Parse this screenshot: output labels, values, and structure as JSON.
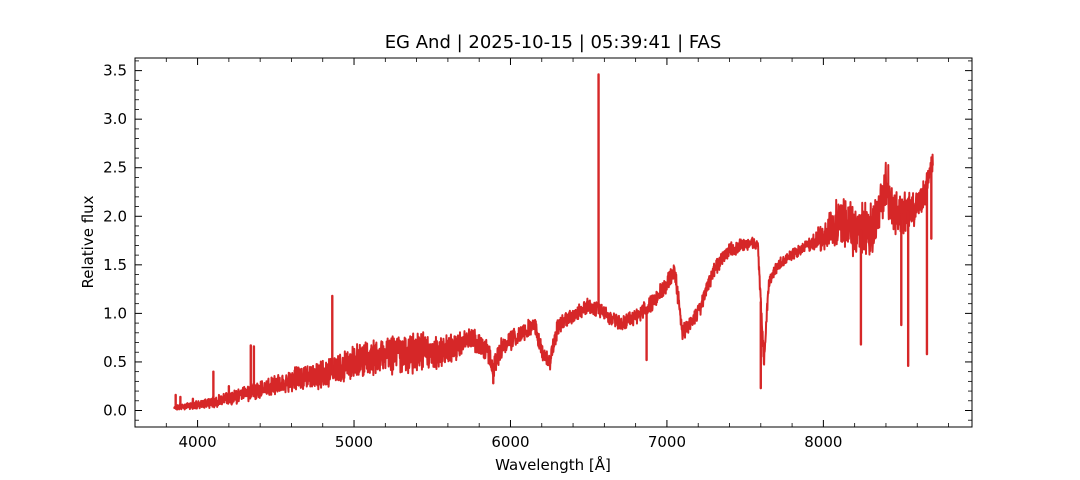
{
  "chart_data": {
    "type": "line",
    "title": "EG And | 2025-10-15 | 05:39:41 | FAS",
    "xlabel": "Wavelength [Å]",
    "ylabel": "Relative flux",
    "xlim": [
      3600,
      8950
    ],
    "ylim": [
      -0.17,
      3.63
    ],
    "xticks": [
      4000,
      5000,
      6000,
      7000,
      8000
    ],
    "yticks": [
      0.0,
      0.5,
      1.0,
      1.5,
      2.0,
      2.5,
      3.0,
      3.5
    ],
    "xtick_labels": [
      "4000",
      "5000",
      "6000",
      "7000",
      "8000"
    ],
    "ytick_labels": [
      "0.0",
      "0.5",
      "1.0",
      "1.5",
      "2.0",
      "2.5",
      "3.0",
      "3.5"
    ],
    "grid": false,
    "legend": "none",
    "series": [
      {
        "color": "#d62728",
        "continuum": [
          [
            3850,
            0.03
          ],
          [
            3950,
            0.05
          ],
          [
            4050,
            0.07
          ],
          [
            4150,
            0.1
          ],
          [
            4250,
            0.14
          ],
          [
            4350,
            0.2
          ],
          [
            4450,
            0.24
          ],
          [
            4550,
            0.29
          ],
          [
            4650,
            0.33
          ],
          [
            4750,
            0.36
          ],
          [
            4850,
            0.42
          ],
          [
            4950,
            0.45
          ],
          [
            5050,
            0.52
          ],
          [
            5150,
            0.55
          ],
          [
            5250,
            0.58
          ],
          [
            5350,
            0.58
          ],
          [
            5450,
            0.6
          ],
          [
            5550,
            0.6
          ],
          [
            5650,
            0.66
          ],
          [
            5750,
            0.75
          ],
          [
            5850,
            0.62
          ],
          [
            5890,
            0.45
          ],
          [
            5950,
            0.66
          ],
          [
            6050,
            0.78
          ],
          [
            6150,
            0.9
          ],
          [
            6200,
            0.6
          ],
          [
            6250,
            0.5
          ],
          [
            6300,
            0.85
          ],
          [
            6400,
            0.98
          ],
          [
            6500,
            1.08
          ],
          [
            6600,
            1.0
          ],
          [
            6700,
            0.9
          ],
          [
            6800,
            0.96
          ],
          [
            6900,
            1.1
          ],
          [
            7000,
            1.3
          ],
          [
            7050,
            1.45
          ],
          [
            7100,
            0.8
          ],
          [
            7200,
            1.0
          ],
          [
            7300,
            1.45
          ],
          [
            7400,
            1.66
          ],
          [
            7500,
            1.7
          ],
          [
            7580,
            1.73
          ],
          [
            7620,
            0.5
          ],
          [
            7650,
            1.3
          ],
          [
            7700,
            1.48
          ],
          [
            7800,
            1.6
          ],
          [
            7900,
            1.7
          ],
          [
            8000,
            1.78
          ],
          [
            8100,
            1.95
          ],
          [
            8200,
            1.86
          ],
          [
            8300,
            1.85
          ],
          [
            8350,
            2.0
          ],
          [
            8400,
            2.35
          ],
          [
            8450,
            2.05
          ],
          [
            8500,
            2.02
          ],
          [
            8550,
            2.05
          ],
          [
            8600,
            2.12
          ],
          [
            8650,
            2.25
          ],
          [
            8700,
            2.55
          ]
        ],
        "noise": [
          [
            3850,
            0.02
          ],
          [
            4200,
            0.06
          ],
          [
            4500,
            0.09
          ],
          [
            5000,
            0.16
          ],
          [
            5400,
            0.17
          ],
          [
            5800,
            0.1
          ],
          [
            6300,
            0.08
          ],
          [
            6600,
            0.06
          ],
          [
            7000,
            0.08
          ],
          [
            7500,
            0.06
          ],
          [
            7900,
            0.05
          ],
          [
            8100,
            0.22
          ],
          [
            8400,
            0.24
          ],
          [
            8700,
            0.1
          ]
        ],
        "features": [
          {
            "w": 3860,
            "y": 0.16
          },
          {
            "w": 3890,
            "y": 0.14
          },
          {
            "w": 3970,
            "y": 0.12
          },
          {
            "w": 4101,
            "y": 0.4
          },
          {
            "w": 4200,
            "y": 0.25
          },
          {
            "w": 4340,
            "y": 0.67
          },
          {
            "w": 4360,
            "y": 0.66
          },
          {
            "w": 4861,
            "y": 1.18
          },
          {
            "w": 5890,
            "y": 0.28
          },
          {
            "w": 6563,
            "y": 3.46
          },
          {
            "w": 6870,
            "y": 0.52
          },
          {
            "w": 7600,
            "y": 0.23
          },
          {
            "w": 8240,
            "y": 0.68
          },
          {
            "w": 8498,
            "y": 0.88
          },
          {
            "w": 8542,
            "y": 0.46
          },
          {
            "w": 8662,
            "y": 0.58
          },
          {
            "w": 8690,
            "y": 1.77
          }
        ]
      }
    ]
  }
}
